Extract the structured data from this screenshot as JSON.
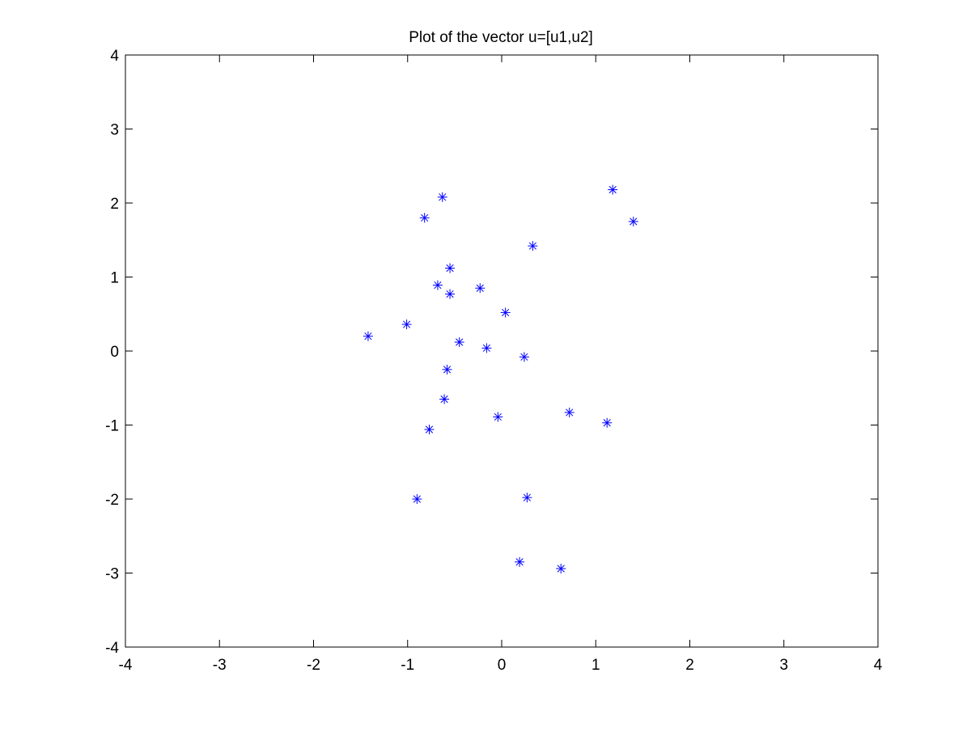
{
  "chart_data": {
    "type": "scatter",
    "title": "Plot of the vector u=[u1,u2]",
    "xlabel": "",
    "ylabel": "",
    "xlim": [
      -4,
      4
    ],
    "ylim": [
      -4,
      4
    ],
    "xticks": [
      "-4",
      "-3",
      "-2",
      "-1",
      "0",
      "1",
      "2",
      "3",
      "4"
    ],
    "yticks": [
      "-4",
      "-3",
      "-2",
      "-1",
      "0",
      "1",
      "2",
      "3",
      "4"
    ],
    "grid": false,
    "marker": "asterisk",
    "color": "#0000ff",
    "series": [
      {
        "points": [
          {
            "x": -0.63,
            "y": 2.08
          },
          {
            "x": 1.18,
            "y": 2.18
          },
          {
            "x": -0.82,
            "y": 1.8
          },
          {
            "x": 1.4,
            "y": 1.75
          },
          {
            "x": 0.33,
            "y": 1.42
          },
          {
            "x": -0.55,
            "y": 1.12
          },
          {
            "x": -0.68,
            "y": 0.89
          },
          {
            "x": -0.23,
            "y": 0.85
          },
          {
            "x": -0.55,
            "y": 0.77
          },
          {
            "x": 0.04,
            "y": 0.52
          },
          {
            "x": -1.01,
            "y": 0.36
          },
          {
            "x": -1.42,
            "y": 0.2
          },
          {
            "x": -0.45,
            "y": 0.12
          },
          {
            "x": -0.16,
            "y": 0.04
          },
          {
            "x": 0.24,
            "y": -0.08
          },
          {
            "x": -0.58,
            "y": -0.25
          },
          {
            "x": -0.61,
            "y": -0.65
          },
          {
            "x": 0.72,
            "y": -0.83
          },
          {
            "x": -0.04,
            "y": -0.89
          },
          {
            "x": 1.12,
            "y": -0.97
          },
          {
            "x": -0.77,
            "y": -1.06
          },
          {
            "x": -0.9,
            "y": -2.0
          },
          {
            "x": 0.27,
            "y": -1.98
          },
          {
            "x": 0.19,
            "y": -2.85
          },
          {
            "x": 0.63,
            "y": -2.94
          }
        ]
      }
    ]
  }
}
